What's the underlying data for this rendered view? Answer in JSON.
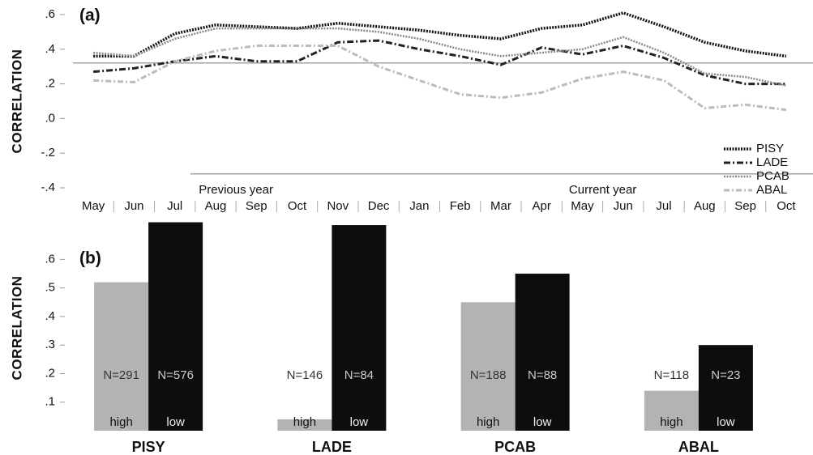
{
  "chart_data": [
    {
      "type": "line",
      "title": "(a)",
      "y_label": "CORRELATION",
      "categories": [
        "May",
        "Jun",
        "Jul",
        "Aug",
        "Sep",
        "Oct",
        "Nov",
        "Dec",
        "Jan",
        "Feb",
        "Mar",
        "Apr",
        "May",
        "Jun",
        "Jul",
        "Aug",
        "Sep",
        "Oct"
      ],
      "groups": [
        {
          "label": "Previous year",
          "from": 0,
          "to": 7
        },
        {
          "label": "Current year",
          "from": 8,
          "to": 17
        }
      ],
      "series": [
        {
          "name": "PISY",
          "color": "#111111",
          "values": [
            0.36,
            0.36,
            0.49,
            0.54,
            0.53,
            0.52,
            0.55,
            0.53,
            0.51,
            0.48,
            0.46,
            0.52,
            0.54,
            0.61,
            0.53,
            0.44,
            0.39,
            0.36
          ]
        },
        {
          "name": "LADE",
          "color": "#222222",
          "values": [
            0.27,
            0.29,
            0.33,
            0.36,
            0.33,
            0.33,
            0.44,
            0.45,
            0.4,
            0.36,
            0.31,
            0.41,
            0.37,
            0.42,
            0.35,
            0.25,
            0.2,
            0.2
          ]
        },
        {
          "name": "PCAB",
          "color": "#888888",
          "values": [
            0.38,
            0.36,
            0.46,
            0.52,
            0.52,
            0.52,
            0.52,
            0.5,
            0.46,
            0.4,
            0.36,
            0.38,
            0.4,
            0.47,
            0.38,
            0.26,
            0.24,
            0.19
          ]
        },
        {
          "name": "ABAL",
          "color": "#bbbbbb",
          "values": [
            0.22,
            0.21,
            0.33,
            0.39,
            0.42,
            0.42,
            0.42,
            0.3,
            0.22,
            0.14,
            0.12,
            0.15,
            0.23,
            0.27,
            0.22,
            0.06,
            0.08,
            0.05
          ]
        }
      ],
      "hlines": [
        0.32,
        -0.32
      ],
      "ylim": [
        -0.4,
        0.6
      ],
      "yticks": [
        {
          "value": 0.6,
          "label": ".6"
        },
        {
          "value": 0.4,
          "label": ".4"
        },
        {
          "value": 0.2,
          "label": ".2"
        },
        {
          "value": 0.0,
          "label": ".0"
        },
        {
          "value": -0.2,
          "label": "-.2"
        },
        {
          "value": -0.4,
          "label": "-.4"
        }
      ],
      "legend": "lower right"
    },
    {
      "type": "bar",
      "title": "(b)",
      "y_label": "CORRELATION",
      "categories": [
        "PISY",
        "LADE",
        "PCAB",
        "ABAL"
      ],
      "series": [
        {
          "name": "high",
          "color": "#b3b3b3",
          "values": [
            0.52,
            0.04,
            0.45,
            0.14
          ],
          "labels": [
            "N=291",
            "N=146",
            "N=188",
            "N=118"
          ]
        },
        {
          "name": "low",
          "color": "#0d0d0d",
          "values": [
            0.73,
            0.72,
            0.55,
            0.3
          ],
          "labels": [
            "N=576",
            "N=84",
            "N=88",
            "N=23"
          ]
        }
      ],
      "ylim": [
        0,
        0.74
      ],
      "yticks": [
        {
          "value": 0.6,
          "label": ".6"
        },
        {
          "value": 0.5,
          "label": ".5"
        },
        {
          "value": 0.4,
          "label": ".4"
        },
        {
          "value": 0.3,
          "label": ".3"
        },
        {
          "value": 0.2,
          "label": ".2"
        },
        {
          "value": 0.1,
          "label": ".1"
        }
      ]
    }
  ]
}
